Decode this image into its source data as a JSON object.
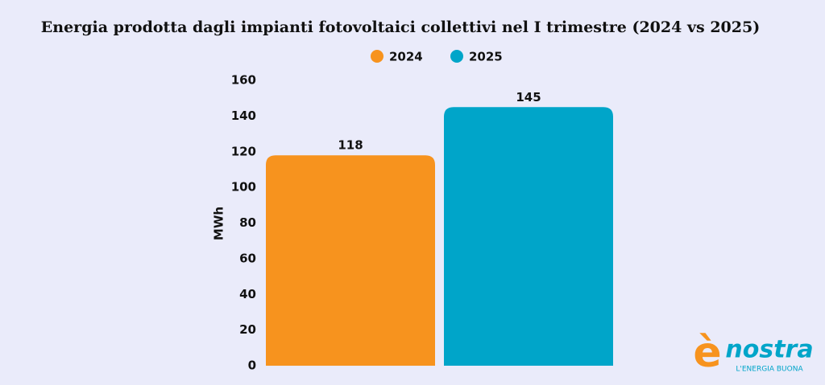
{
  "chart_data": {
    "type": "bar",
    "title": "Energia prodotta dagli impianti fotovoltaici collettivi nel I trimestre (2024 vs 2025)",
    "y_label": "MWh",
    "categories": [
      null
    ],
    "series": [
      {
        "name": "2024",
        "color": "#f7931e",
        "values": [
          118
        ]
      },
      {
        "name": "2025",
        "color": "#00a5c9",
        "values": [
          145
        ]
      }
    ],
    "ylim": [
      0,
      160
    ],
    "yticks": [
      0,
      20,
      40,
      60,
      80,
      100,
      120,
      140,
      160
    ],
    "grid": false,
    "legend": "top"
  },
  "logo": {
    "mark": "è",
    "name": "nostra",
    "tagline": "L'ENERGIA BUONA"
  }
}
